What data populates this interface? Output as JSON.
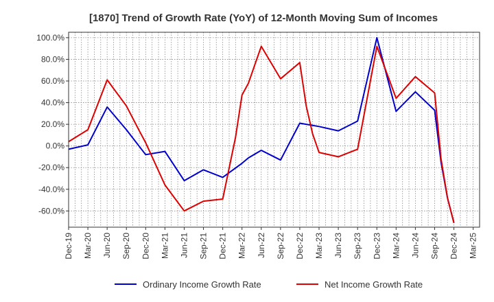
{
  "chart_data": {
    "type": "line",
    "title": "[1870]  Trend of Growth Rate (YoY) of 12-Month Moving Sum of Incomes",
    "xlabel": "",
    "ylabel": "",
    "x_ticks": [
      "Dec-19",
      "Mar-20",
      "Jun-20",
      "Sep-20",
      "Dec-20",
      "Mar-21",
      "Jun-21",
      "Sep-21",
      "Dec-21",
      "Mar-22",
      "Jun-22",
      "Sep-22",
      "Dec-22",
      "Mar-23",
      "Jun-23",
      "Sep-23",
      "Dec-23",
      "Mar-24",
      "Jun-24",
      "Sep-24",
      "Dec-24",
      "Mar-25"
    ],
    "y_ticks": [
      "100.0%",
      "80.0%",
      "60.0%",
      "40.0%",
      "20.0%",
      "0.0%",
      "-20.0%",
      "-40.0%",
      "-60.0%"
    ],
    "y_tick_values": [
      100,
      80,
      60,
      40,
      20,
      0,
      -20,
      -40,
      -60
    ],
    "ylim": [
      -75,
      105
    ],
    "months_count": 64,
    "grid": true,
    "legend_position": "bottom",
    "series": [
      {
        "name": "Ordinary Income Growth Rate",
        "color": "#0000cc",
        "points": [
          [
            0,
            -3
          ],
          [
            3,
            1
          ],
          [
            6,
            36
          ],
          [
            9,
            15
          ],
          [
            12,
            -8
          ],
          [
            15,
            -5
          ],
          [
            18,
            -32
          ],
          [
            21,
            -22
          ],
          [
            24,
            -29
          ],
          [
            27,
            -16
          ],
          [
            28,
            -11
          ],
          [
            30,
            -4
          ],
          [
            33,
            -13
          ],
          [
            36,
            21
          ],
          [
            39,
            18
          ],
          [
            42,
            14
          ],
          [
            45,
            23
          ],
          [
            48,
            100
          ],
          [
            51,
            32
          ],
          [
            54,
            50
          ],
          [
            57,
            33
          ],
          [
            58,
            -15
          ],
          [
            59,
            -48
          ],
          [
            60,
            -71
          ]
        ]
      },
      {
        "name": "Net Income Growth Rate",
        "color": "#dd0000",
        "points": [
          [
            0,
            4
          ],
          [
            3,
            15
          ],
          [
            6,
            61
          ],
          [
            9,
            37
          ],
          [
            11,
            14
          ],
          [
            12,
            3
          ],
          [
            15,
            -36
          ],
          [
            18,
            -60
          ],
          [
            21,
            -51
          ],
          [
            24,
            -49
          ],
          [
            26,
            8
          ],
          [
            27,
            47
          ],
          [
            28,
            58
          ],
          [
            29,
            75
          ],
          [
            30,
            92
          ],
          [
            33,
            62
          ],
          [
            36,
            77
          ],
          [
            37,
            37
          ],
          [
            38,
            11
          ],
          [
            39,
            -6
          ],
          [
            42,
            -10
          ],
          [
            45,
            -3
          ],
          [
            48,
            92
          ],
          [
            51,
            44
          ],
          [
            54,
            64
          ],
          [
            57,
            49
          ],
          [
            58,
            -12
          ],
          [
            59,
            -48
          ],
          [
            60,
            -71
          ]
        ]
      }
    ]
  }
}
